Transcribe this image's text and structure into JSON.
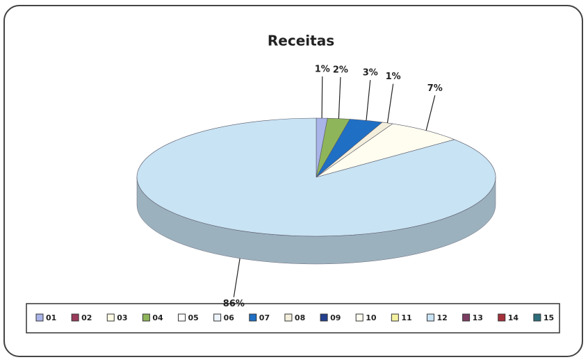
{
  "chart_data": {
    "type": "pie",
    "title": "Receitas",
    "categories": [
      "01",
      "02",
      "03",
      "04",
      "05",
      "06",
      "07",
      "08",
      "09",
      "10",
      "11",
      "12",
      "13",
      "14",
      "15"
    ],
    "values": [
      1,
      0,
      0,
      2,
      0,
      0,
      3,
      1,
      0,
      7,
      0,
      86,
      0,
      0,
      0
    ],
    "value_labels": [
      "1%",
      null,
      null,
      "2%",
      null,
      null,
      "3%",
      "1%",
      null,
      "7%",
      null,
      "86%",
      null,
      null,
      null
    ],
    "colors": [
      "#a9b4e8",
      "#9a3a5a",
      "#fdfbe6",
      "#8fb55a",
      "#ffffff",
      "#eef4fb",
      "#1f6fc5",
      "#f3efdc",
      "#233f8f",
      "#fffdf0",
      "#f4f2a0",
      "#c8e3f3",
      "#7c3d63",
      "#a5303a",
      "#2e6e7c"
    ],
    "legend": "bottom"
  }
}
